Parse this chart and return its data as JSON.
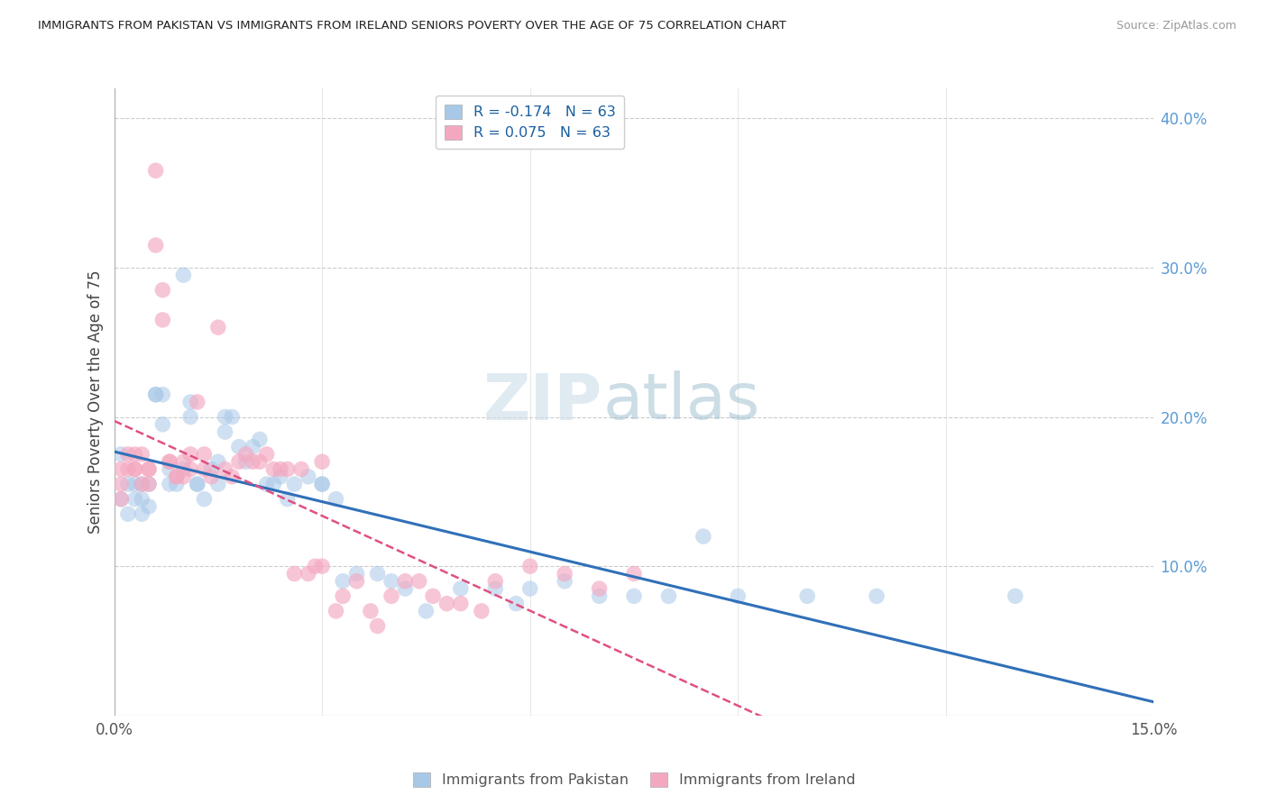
{
  "title": "IMMIGRANTS FROM PAKISTAN VS IMMIGRANTS FROM IRELAND SENIORS POVERTY OVER THE AGE OF 75 CORRELATION CHART",
  "source": "Source: ZipAtlas.com",
  "ylabel": "Seniors Poverty Over the Age of 75",
  "xlim": [
    0.0,
    0.15
  ],
  "ylim": [
    0.0,
    0.42
  ],
  "ytick_vals": [
    0.1,
    0.2,
    0.3,
    0.4
  ],
  "ytick_labels": [
    "10.0%",
    "20.0%",
    "30.0%",
    "40.0%"
  ],
  "color_pakistan": "#a8c8e8",
  "color_ireland": "#f4a8c0",
  "line_color_pakistan": "#3070b8",
  "line_color_ireland": "#e05080",
  "R_pakistan": -0.174,
  "R_ireland": 0.075,
  "N": 63,
  "legend_entries": [
    "Immigrants from Pakistan",
    "Immigrants from Ireland"
  ],
  "watermark_zip": "ZIP",
  "watermark_atlas": "atlas",
  "pakistan_x": [
    0.001,
    0.001,
    0.002,
    0.002,
    0.003,
    0.003,
    0.004,
    0.004,
    0.004,
    0.005,
    0.005,
    0.006,
    0.006,
    0.007,
    0.007,
    0.008,
    0.008,
    0.009,
    0.01,
    0.01,
    0.011,
    0.011,
    0.012,
    0.012,
    0.013,
    0.014,
    0.015,
    0.015,
    0.016,
    0.016,
    0.017,
    0.018,
    0.019,
    0.02,
    0.021,
    0.022,
    0.023,
    0.024,
    0.025,
    0.026,
    0.028,
    0.03,
    0.03,
    0.032,
    0.033,
    0.035,
    0.038,
    0.04,
    0.042,
    0.045,
    0.05,
    0.055,
    0.058,
    0.06,
    0.065,
    0.07,
    0.075,
    0.08,
    0.085,
    0.09,
    0.1,
    0.11,
    0.13
  ],
  "pakistan_y": [
    0.175,
    0.145,
    0.155,
    0.135,
    0.155,
    0.145,
    0.135,
    0.145,
    0.155,
    0.155,
    0.14,
    0.215,
    0.215,
    0.215,
    0.195,
    0.155,
    0.165,
    0.155,
    0.295,
    0.165,
    0.2,
    0.21,
    0.155,
    0.155,
    0.145,
    0.165,
    0.155,
    0.17,
    0.19,
    0.2,
    0.2,
    0.18,
    0.17,
    0.18,
    0.185,
    0.155,
    0.155,
    0.16,
    0.145,
    0.155,
    0.16,
    0.155,
    0.155,
    0.145,
    0.09,
    0.095,
    0.095,
    0.09,
    0.085,
    0.07,
    0.085,
    0.085,
    0.075,
    0.085,
    0.09,
    0.08,
    0.08,
    0.08,
    0.12,
    0.08,
    0.08,
    0.08,
    0.08
  ],
  "ireland_x": [
    0.001,
    0.001,
    0.001,
    0.002,
    0.002,
    0.003,
    0.003,
    0.003,
    0.004,
    0.004,
    0.005,
    0.005,
    0.005,
    0.006,
    0.006,
    0.007,
    0.007,
    0.008,
    0.008,
    0.009,
    0.009,
    0.01,
    0.01,
    0.011,
    0.011,
    0.012,
    0.013,
    0.013,
    0.014,
    0.015,
    0.016,
    0.017,
    0.018,
    0.019,
    0.02,
    0.021,
    0.022,
    0.023,
    0.024,
    0.025,
    0.026,
    0.027,
    0.028,
    0.029,
    0.03,
    0.03,
    0.032,
    0.033,
    0.035,
    0.037,
    0.038,
    0.04,
    0.042,
    0.044,
    0.046,
    0.048,
    0.05,
    0.053,
    0.055,
    0.06,
    0.065,
    0.07,
    0.075
  ],
  "ireland_y": [
    0.145,
    0.165,
    0.155,
    0.165,
    0.175,
    0.165,
    0.165,
    0.175,
    0.155,
    0.175,
    0.155,
    0.165,
    0.165,
    0.365,
    0.315,
    0.285,
    0.265,
    0.17,
    0.17,
    0.16,
    0.16,
    0.16,
    0.17,
    0.165,
    0.175,
    0.21,
    0.165,
    0.175,
    0.16,
    0.26,
    0.165,
    0.16,
    0.17,
    0.175,
    0.17,
    0.17,
    0.175,
    0.165,
    0.165,
    0.165,
    0.095,
    0.165,
    0.095,
    0.1,
    0.1,
    0.17,
    0.07,
    0.08,
    0.09,
    0.07,
    0.06,
    0.08,
    0.09,
    0.09,
    0.08,
    0.075,
    0.075,
    0.07,
    0.09,
    0.1,
    0.095,
    0.085,
    0.095
  ]
}
